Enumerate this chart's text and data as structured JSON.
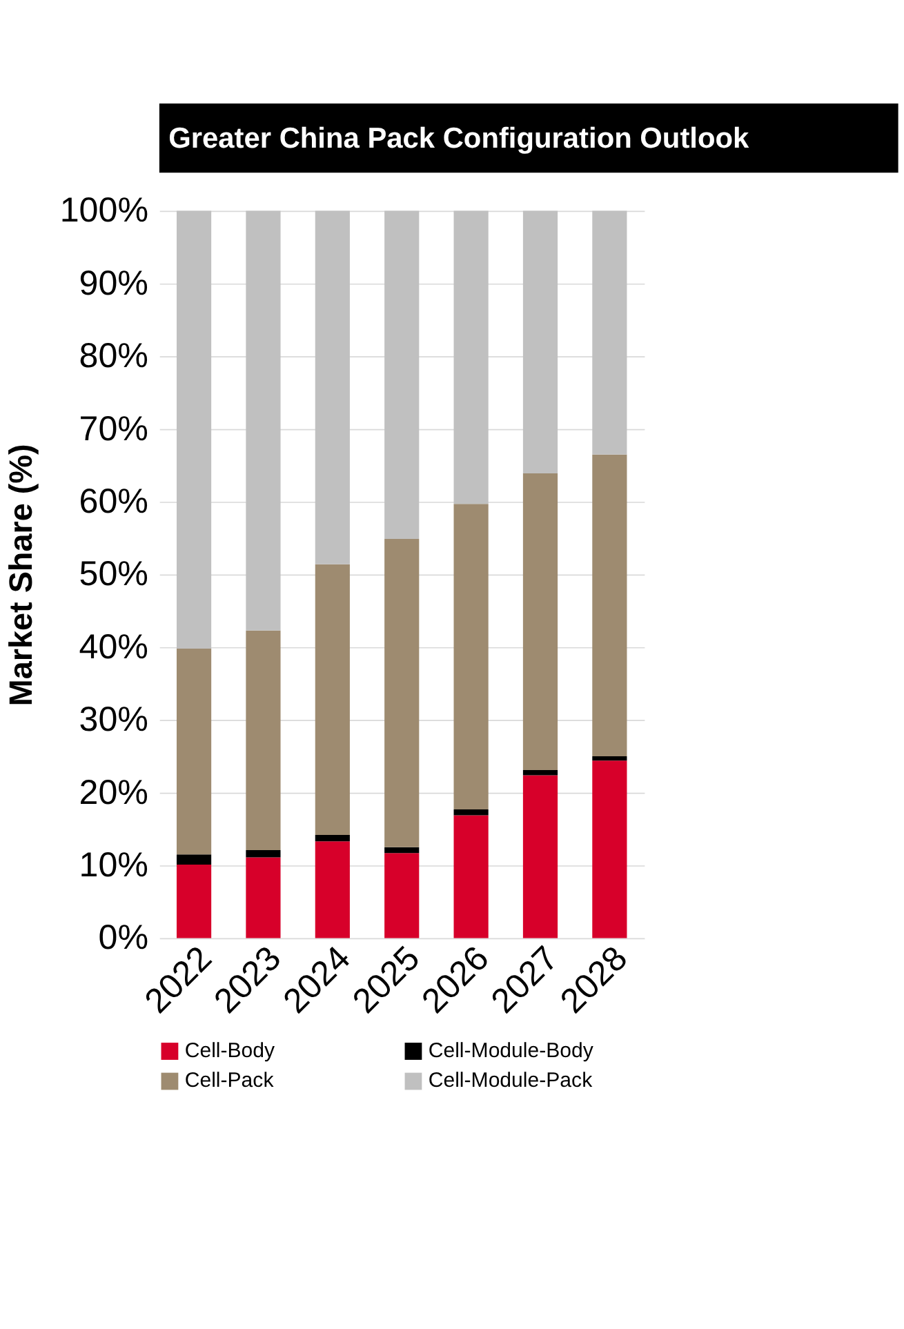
{
  "chart_data": {
    "type": "bar",
    "title": "Greater China Pack Configuration Outlook",
    "ylabel": "Market Share (%)",
    "categories": [
      "2022",
      "2023",
      "2024",
      "2025",
      "2026",
      "2027",
      "2028"
    ],
    "stacked": true,
    "series": [
      {
        "name": "Cell-Body",
        "color": "#d7002a",
        "values": [
          10.1,
          11.1,
          13.3,
          11.7,
          16.9,
          22.4,
          24.4
        ]
      },
      {
        "name": "Cell-Module-Body",
        "color": "#000000",
        "values": [
          1.4,
          1.0,
          0.9,
          0.8,
          0.8,
          0.7,
          0.6
        ]
      },
      {
        "name": "Cell-Pack",
        "color": "#9e8b70",
        "values": [
          28.3,
          30.2,
          37.2,
          42.4,
          42.0,
          40.8,
          41.5
        ]
      },
      {
        "name": "Cell-Module-Pack",
        "color": "#c0c0c0",
        "values": [
          60.2,
          57.7,
          48.6,
          45.1,
          40.3,
          36.1,
          33.5
        ]
      }
    ],
    "ylim": [
      0,
      100
    ],
    "yticks": [
      {
        "value": 0,
        "label": "0%"
      },
      {
        "value": 10,
        "label": "10%"
      },
      {
        "value": 20,
        "label": "20%"
      },
      {
        "value": 30,
        "label": "30%"
      },
      {
        "value": 40,
        "label": "40%"
      },
      {
        "value": 50,
        "label": "50%"
      },
      {
        "value": 60,
        "label": "60%"
      },
      {
        "value": 70,
        "label": "70%"
      },
      {
        "value": 80,
        "label": "80%"
      },
      {
        "value": 90,
        "label": "90%"
      },
      {
        "value": 100,
        "label": "100%"
      }
    ],
    "grid": "y",
    "legend": "bottom"
  }
}
